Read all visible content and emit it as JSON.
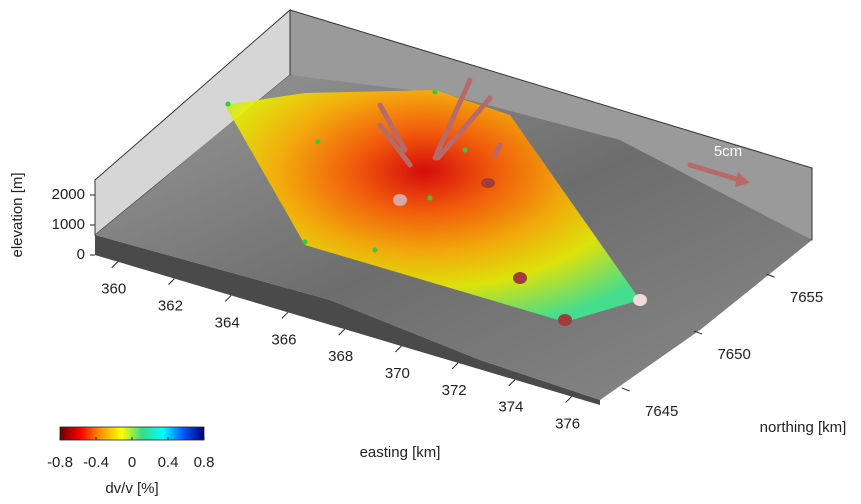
{
  "chart_data": {
    "type": "surface3d",
    "xlabel": "easting [km]",
    "ylabel": "northing [km]",
    "zlabel": "elevation [m]",
    "xlim": [
      359.2,
      377
    ],
    "xticks": [
      360,
      362,
      364,
      366,
      368,
      370,
      372,
      374,
      376
    ],
    "ylim": [
      7643.5,
      7658
    ],
    "yticks": [
      7645,
      7650,
      7655
    ],
    "zticks": [
      0,
      1000,
      2000
    ],
    "colorbar": {
      "label": "dv/v [%]",
      "clim": [
        -0.8,
        0.8
      ],
      "ticks": [
        -0.8,
        -0.4,
        0,
        0.4,
        0.8
      ],
      "colormap": [
        "#6b0000",
        "#ff0000",
        "#ff9900",
        "#ffff00",
        "#33dd88",
        "#00ffff",
        "#0055ff",
        "#00007a"
      ]
    },
    "reference_arrow": {
      "label": "5cm",
      "color": "#b86a6a"
    }
  }
}
